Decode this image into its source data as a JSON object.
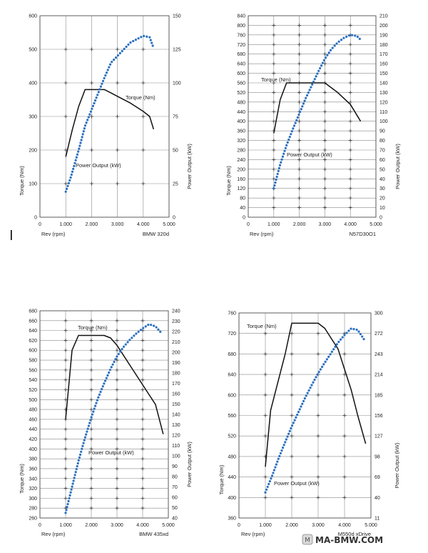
{
  "watermark": "MA-BMW.COM",
  "colors": {
    "torque": "#111111",
    "power": "#2a6fc0",
    "grid": "#8a8a8a",
    "frame": "#444444"
  },
  "chart_data": [
    {
      "type": "line",
      "title": "BMW 320d",
      "xlabel": "Rev (rpm)",
      "ylabel": "Torque (Nm)",
      "y2label": "Power Output (kW)",
      "xlim": [
        0,
        5000
      ],
      "ylim": [
        0,
        600
      ],
      "y2lim": [
        0,
        150
      ],
      "xticks": [
        "0",
        "1.000",
        "2.000",
        "3.000",
        "4.000",
        "5.000"
      ],
      "yticks": [
        "0",
        "100",
        "200",
        "300",
        "400",
        "500",
        "600"
      ],
      "y2ticks": [
        "0",
        "25",
        "50",
        "75",
        "100",
        "125",
        "150"
      ],
      "grid": true,
      "series": [
        {
          "name": "Torque (Nm)",
          "axis": "left",
          "style": "solid",
          "x": [
            1000,
            1250,
            1500,
            1750,
            2000,
            2500,
            2750,
            3000,
            3500,
            4000,
            4250,
            4400
          ],
          "y": [
            180,
            260,
            330,
            380,
            380,
            380,
            370,
            360,
            340,
            315,
            300,
            262
          ]
        },
        {
          "name": "Power Output (kW)",
          "axis": "right",
          "style": "dotted",
          "x": [
            1000,
            1200,
            1500,
            1750,
            2000,
            2250,
            2500,
            2750,
            3000,
            3500,
            4000,
            4250,
            4400
          ],
          "y": [
            19,
            30,
            50,
            68,
            80,
            92,
            104,
            115,
            120,
            130,
            135,
            134,
            126
          ]
        }
      ]
    },
    {
      "type": "line",
      "title": "N57D30O1",
      "xlabel": "Rev (rpm)",
      "ylabel": "Torque (Nm)",
      "y2label": "Power Output (kW)",
      "xlim": [
        0,
        5000
      ],
      "ylim": [
        0,
        840
      ],
      "y2lim": [
        0,
        210
      ],
      "xticks": [
        "0",
        "1.000",
        "2.000",
        "3.000",
        "4.000",
        "5.000"
      ],
      "yticks": [
        "0",
        "40",
        "80",
        "120",
        "160",
        "200",
        "240",
        "280",
        "320",
        "360",
        "400",
        "440",
        "480",
        "520",
        "560",
        "600",
        "640",
        "680",
        "720",
        "760",
        "800",
        "840"
      ],
      "y2ticks": [
        "0",
        "10",
        "20",
        "30",
        "40",
        "50",
        "60",
        "70",
        "80",
        "90",
        "100",
        "110",
        "120",
        "130",
        "140",
        "150",
        "160",
        "170",
        "180",
        "190",
        "200",
        "210"
      ],
      "grid": true,
      "series": [
        {
          "name": "Torque (Nm)",
          "axis": "left",
          "style": "solid",
          "x": [
            1000,
            1250,
            1500,
            2000,
            2500,
            3000,
            3500,
            4000,
            4400
          ],
          "y": [
            350,
            490,
            560,
            560,
            560,
            560,
            520,
            470,
            400
          ]
        },
        {
          "name": "Power Output (kW)",
          "axis": "right",
          "style": "dotted",
          "x": [
            1000,
            1250,
            1500,
            1750,
            2000,
            2250,
            2500,
            2750,
            3000,
            3250,
            3500,
            3750,
            4000,
            4250,
            4400
          ],
          "y": [
            30,
            55,
            75,
            92,
            108,
            124,
            138,
            152,
            165,
            175,
            182,
            187,
            190,
            189,
            185
          ]
        }
      ]
    },
    {
      "type": "line",
      "title": "BMW 435xd",
      "xlabel": "Rev (rpm)",
      "ylabel": "Torque (Nm)",
      "y2label": "Power Output (kW)",
      "xlim": [
        0,
        5000
      ],
      "ylim": [
        260,
        680
      ],
      "y2lim": [
        40,
        240
      ],
      "xticks": [
        "0",
        "1.000",
        "2.000",
        "3.000",
        "4.000",
        "5.000"
      ],
      "yticks": [
        "260",
        "280",
        "300",
        "320",
        "340",
        "360",
        "380",
        "400",
        "420",
        "440",
        "460",
        "480",
        "500",
        "520",
        "540",
        "560",
        "580",
        "600",
        "620",
        "640",
        "660",
        "680"
      ],
      "y2ticks": [
        "40",
        "50",
        "60",
        "70",
        "80",
        "90",
        "100",
        "110",
        "120",
        "130",
        "140",
        "150",
        "160",
        "170",
        "180",
        "190",
        "200",
        "210",
        "220",
        "230",
        "240"
      ],
      "grid": true,
      "series": [
        {
          "name": "Torque (Nm)",
          "axis": "left",
          "style": "solid",
          "x": [
            1000,
            1250,
            1500,
            2000,
            2500,
            2750,
            3000,
            3500,
            4000,
            4250,
            4500,
            4800
          ],
          "y": [
            460,
            600,
            630,
            630,
            630,
            625,
            610,
            570,
            530,
            510,
            490,
            430
          ]
        },
        {
          "name": "Power Output (kW)",
          "axis": "right",
          "style": "dotted",
          "x": [
            1000,
            1250,
            1500,
            1750,
            2000,
            2250,
            2500,
            2750,
            3000,
            3250,
            3500,
            3750,
            4000,
            4250,
            4500,
            4750
          ],
          "y": [
            45,
            70,
            95,
            117,
            137,
            155,
            170,
            184,
            196,
            205,
            212,
            218,
            223,
            227,
            225,
            218
          ]
        }
      ]
    },
    {
      "type": "line",
      "title": "M550d xDrive",
      "xlabel": "Rev (rpm)",
      "ylabel": "Torque (Nm)",
      "y2label": "Power Output (kW)",
      "xlim": [
        0,
        5000
      ],
      "ylim": [
        360,
        760
      ],
      "y2lim": [
        11,
        300
      ],
      "xticks": [
        "0",
        "1.000",
        "2.000",
        "3.000",
        "4.000",
        "5.000"
      ],
      "yticks": [
        "360",
        "400",
        "440",
        "480",
        "520",
        "560",
        "600",
        "640",
        "680",
        "720",
        "760"
      ],
      "y2ticks": [
        "11",
        "40",
        "69",
        "98",
        "127",
        "156",
        "185",
        "214",
        "243",
        "272",
        "300"
      ],
      "grid": true,
      "series": [
        {
          "name": "Torque (Nm)",
          "axis": "left",
          "style": "solid",
          "x": [
            1000,
            1200,
            1500,
            1750,
            2000,
            2500,
            3000,
            3250,
            3500,
            3750,
            4000,
            4250,
            4500,
            4800
          ],
          "y": [
            460,
            570,
            630,
            680,
            740,
            740,
            740,
            730,
            710,
            690,
            650,
            610,
            560,
            505
          ]
        },
        {
          "name": "Power Output (kW)",
          "axis": "right",
          "style": "dotted",
          "x": [
            1000,
            1250,
            1500,
            1750,
            2000,
            2250,
            2500,
            2750,
            3000,
            3250,
            3500,
            3750,
            4000,
            4250,
            4500,
            4750
          ],
          "y": [
            47,
            70,
            95,
            118,
            140,
            160,
            180,
            198,
            215,
            230,
            244,
            258,
            269,
            278,
            276,
            262
          ]
        }
      ]
    }
  ]
}
